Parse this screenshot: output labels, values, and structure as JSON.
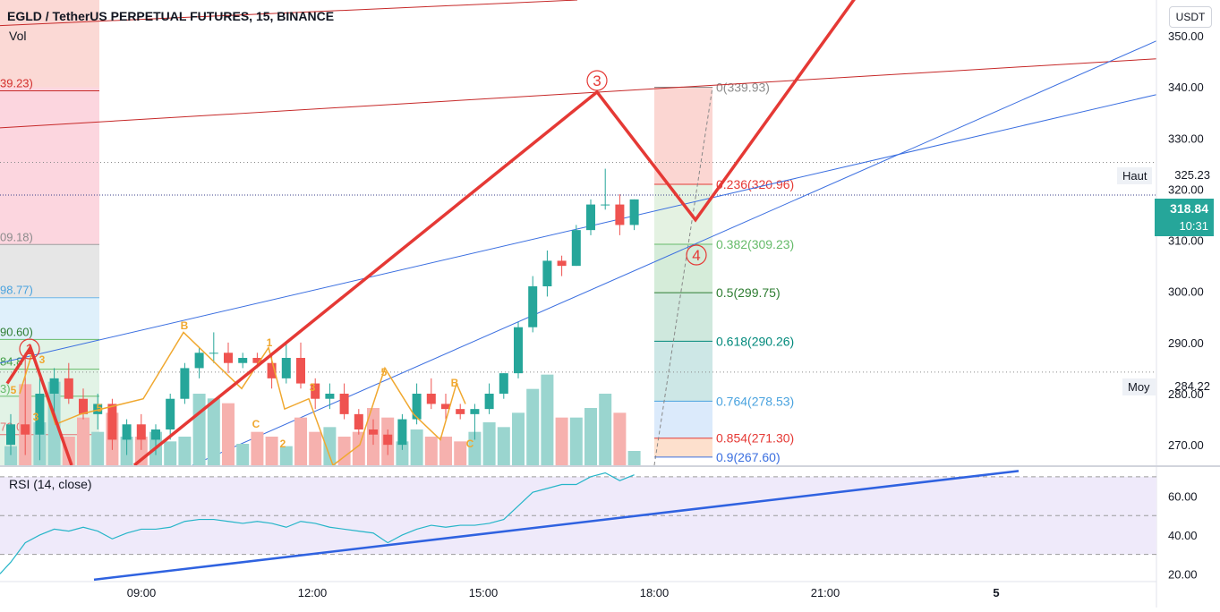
{
  "header": {
    "title": "EGLD / TetherUS PERPETUAL FUTURES, 15, BINANCE",
    "vol": "Vol",
    "currency": "USDT",
    "rsi_label": "RSI (14, close)"
  },
  "markers": {
    "wave1": "1",
    "wave3": "3",
    "wave4": "4",
    "sub_b1": "B",
    "sub_1": "1",
    "sub_3a": "3",
    "sub_5a": "5",
    "sub_c1": "C",
    "sub_2": "2",
    "sub_3b": "3",
    "sub_5b": "5",
    "sub_b2": "B",
    "sub_c2": "C",
    "sub_3c": "3",
    "sub_5c": "5"
  },
  "price_tags": {
    "current_price": "318.84",
    "countdown": "10:31",
    "high_label": "Haut",
    "high_value": "325.23",
    "avg_label": "Moy",
    "avg_value": "284.22"
  },
  "left_fib_labels": [
    "39.23)",
    "09.18)",
    "98.77)",
    "90.60)",
    "84.8",
    "3)",
    "72.0"
  ],
  "colors": {
    "up": "#26a69a",
    "down": "#ef5350",
    "wave": "#e53935",
    "trend": "#3b6fe0",
    "rsi": "#26b5c8"
  },
  "chart_data": [
    {
      "type": "candlestick",
      "title": "EGLD / TetherUS PERPETUAL FUTURES, 15, BINANCE",
      "ylim": [
        266,
        357
      ],
      "y_ticks": [
        "270.00",
        "280.00",
        "290.00",
        "300.00",
        "310.00",
        "320.00",
        "330.00",
        "340.00",
        "350.00"
      ],
      "x_ticks": [
        "09:00",
        "12:00",
        "15:00",
        "18:00",
        "21:00",
        "5"
      ],
      "candles": [
        {
          "o": 270,
          "h": 276,
          "l": 268,
          "c": 274
        },
        {
          "o": 274,
          "h": 288,
          "l": 268,
          "c": 272
        },
        {
          "o": 272,
          "h": 284,
          "l": 267,
          "c": 280
        },
        {
          "o": 280,
          "h": 285,
          "l": 276,
          "c": 283
        },
        {
          "o": 283,
          "h": 286,
          "l": 278,
          "c": 279
        },
        {
          "o": 279,
          "h": 281,
          "l": 275,
          "c": 276
        },
        {
          "o": 276,
          "h": 280,
          "l": 273,
          "c": 278
        },
        {
          "o": 278,
          "h": 279,
          "l": 269,
          "c": 271
        },
        {
          "o": 271,
          "h": 275,
          "l": 268,
          "c": 274
        },
        {
          "o": 274,
          "h": 276,
          "l": 269,
          "c": 271
        },
        {
          "o": 271,
          "h": 274,
          "l": 268,
          "c": 273
        },
        {
          "o": 273,
          "h": 280,
          "l": 271,
          "c": 279
        },
        {
          "o": 279,
          "h": 286,
          "l": 278,
          "c": 285
        },
        {
          "o": 285,
          "h": 289,
          "l": 283,
          "c": 288
        },
        {
          "o": 288,
          "h": 292,
          "l": 286,
          "c": 288
        },
        {
          "o": 288,
          "h": 290,
          "l": 284,
          "c": 286
        },
        {
          "o": 286,
          "h": 288,
          "l": 285,
          "c": 287
        },
        {
          "o": 287,
          "h": 288,
          "l": 285,
          "c": 286
        },
        {
          "o": 286,
          "h": 288,
          "l": 281,
          "c": 283
        },
        {
          "o": 283,
          "h": 290,
          "l": 282,
          "c": 287
        },
        {
          "o": 287,
          "h": 290,
          "l": 281,
          "c": 282
        },
        {
          "o": 282,
          "h": 283,
          "l": 277,
          "c": 279
        },
        {
          "o": 279,
          "h": 282,
          "l": 277,
          "c": 280
        },
        {
          "o": 280,
          "h": 282,
          "l": 275,
          "c": 276
        },
        {
          "o": 276,
          "h": 277,
          "l": 272,
          "c": 273
        },
        {
          "o": 273,
          "h": 275,
          "l": 270,
          "c": 272
        },
        {
          "o": 272,
          "h": 273,
          "l": 268,
          "c": 270
        },
        {
          "o": 270,
          "h": 276,
          "l": 269,
          "c": 275
        },
        {
          "o": 275,
          "h": 282,
          "l": 274,
          "c": 280
        },
        {
          "o": 280,
          "h": 283,
          "l": 277,
          "c": 278
        },
        {
          "o": 278,
          "h": 280,
          "l": 275,
          "c": 277
        },
        {
          "o": 277,
          "h": 278,
          "l": 275,
          "c": 276
        },
        {
          "o": 276,
          "h": 278,
          "l": 271,
          "c": 277
        },
        {
          "o": 277,
          "h": 282,
          "l": 276,
          "c": 280
        },
        {
          "o": 280,
          "h": 284,
          "l": 279,
          "c": 284
        },
        {
          "o": 284,
          "h": 294,
          "l": 283,
          "c": 293
        },
        {
          "o": 293,
          "h": 303,
          "l": 292,
          "c": 301
        },
        {
          "o": 301,
          "h": 308,
          "l": 299,
          "c": 306
        },
        {
          "o": 306,
          "h": 307,
          "l": 303,
          "c": 305
        },
        {
          "o": 305,
          "h": 313,
          "l": 305,
          "c": 312
        },
        {
          "o": 312,
          "h": 318,
          "l": 311,
          "c": 317
        },
        {
          "o": 317,
          "h": 324,
          "l": 316,
          "c": 317
        },
        {
          "o": 317,
          "h": 319,
          "l": 311,
          "c": 313
        },
        {
          "o": 313,
          "h": 318,
          "l": 312,
          "c": 318
        }
      ],
      "volume": [
        8,
        34,
        18,
        35,
        12,
        20,
        14,
        22,
        12,
        12,
        14,
        10,
        12,
        30,
        28,
        26,
        9,
        14,
        12,
        8,
        20,
        14,
        16,
        12,
        14,
        24,
        20,
        10,
        15,
        12,
        12,
        10,
        14,
        18,
        16,
        22,
        32,
        38,
        20,
        20,
        24,
        30,
        22,
        6
      ]
    },
    {
      "type": "line",
      "title": "RSI (14, close)",
      "ylim": [
        16,
        75
      ],
      "y_ticks": [
        "20.00",
        "40.00",
        "60.00"
      ],
      "values": [
        26,
        36,
        40,
        43,
        42,
        44,
        42,
        38,
        41,
        43,
        43,
        44,
        47,
        48,
        48,
        47,
        46,
        47,
        46,
        44,
        47,
        46,
        44,
        43,
        42,
        41,
        36,
        40,
        43,
        45,
        44,
        45,
        45,
        46,
        48,
        55,
        62,
        64,
        66,
        66,
        70,
        72,
        68,
        71
      ]
    }
  ],
  "fib_levels": [
    {
      "ratio": "0",
      "value": 339.93,
      "label": "0(339.93)"
    },
    {
      "ratio": "0.236",
      "value": 320.96,
      "label": "0.236(320.96)"
    },
    {
      "ratio": "0.382",
      "value": 309.23,
      "label": "0.382(309.23)"
    },
    {
      "ratio": "0.5",
      "value": 299.75,
      "label": "0.5(299.75)"
    },
    {
      "ratio": "0.618",
      "value": 290.26,
      "label": "0.618(290.26)"
    },
    {
      "ratio": "0.764",
      "value": 278.53,
      "label": "0.764(278.53)"
    },
    {
      "ratio": "0.854",
      "value": 271.3,
      "label": "0.854(271.30)"
    },
    {
      "ratio": "0.9",
      "value": 267.6,
      "label": "0.9(267.60)"
    }
  ]
}
